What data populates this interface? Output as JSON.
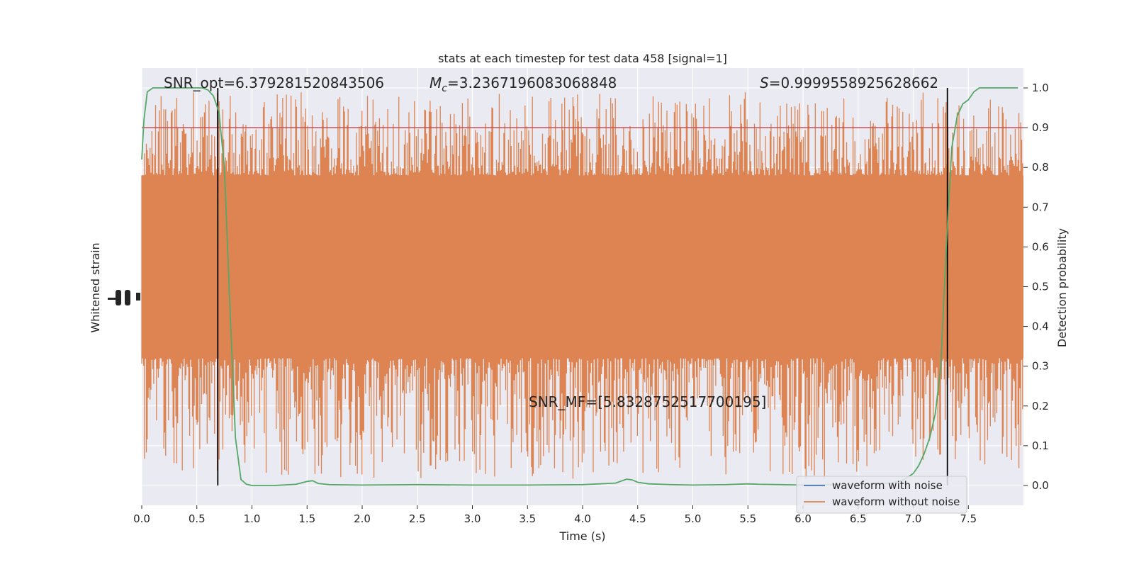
{
  "chart_data": {
    "type": "line",
    "title": "stats at each timestep for test data 458 [signal=1]",
    "xlabel": "Time (s)",
    "ylabel_left": "Whitened strain",
    "ylabel_right": "Detection probability",
    "xlim": [
      0.0,
      8.0
    ],
    "ylim_right": [
      -0.05,
      1.05
    ],
    "x_ticks": [
      0.0,
      0.5,
      1.0,
      1.5,
      2.0,
      2.5,
      3.0,
      3.5,
      4.0,
      4.5,
      5.0,
      5.5,
      6.0,
      6.5,
      7.0,
      7.5
    ],
    "x_tick_labels": [
      "0.0",
      "0.5",
      "1.0",
      "1.5",
      "2.0",
      "2.5",
      "3.0",
      "3.5",
      "4.0",
      "4.5",
      "5.0",
      "5.5",
      "6.0",
      "6.5",
      "7.0",
      "7.5"
    ],
    "y_right_ticks": [
      0.0,
      0.1,
      0.2,
      0.3,
      0.4,
      0.5,
      0.6,
      0.7,
      0.8,
      0.9,
      1.0
    ],
    "y_right_tick_labels": [
      "0.0",
      "0.1",
      "0.2",
      "0.3",
      "0.4",
      "0.5",
      "0.6",
      "0.7",
      "0.8",
      "0.9",
      "1.0"
    ],
    "grid": true,
    "legend_position": "lower-right",
    "series": [
      {
        "name": "waveform with noise",
        "color": "#4c72b0",
        "visible_in_plot": false
      },
      {
        "name": "waveform without noise",
        "color": "#dd8452",
        "style": "dense noise band",
        "band_core": [
          0.32,
          0.78
        ],
        "band_extremes": [
          0.0,
          1.0
        ]
      }
    ],
    "detection_probability": {
      "color": "#55a868",
      "x": [
        0.0,
        0.02,
        0.05,
        0.1,
        0.15,
        0.2,
        0.3,
        0.4,
        0.5,
        0.55,
        0.6,
        0.65,
        0.7,
        0.75,
        0.8,
        0.85,
        0.9,
        0.95,
        1.0,
        1.2,
        1.4,
        1.5,
        1.55,
        1.6,
        1.7,
        2.0,
        2.5,
        3.0,
        3.5,
        4.0,
        4.3,
        4.4,
        4.45,
        4.5,
        4.6,
        4.8,
        5.0,
        5.3,
        5.5,
        5.6,
        5.8,
        6.0,
        6.2,
        6.5,
        6.8,
        6.9,
        7.0,
        7.05,
        7.1,
        7.15,
        7.2,
        7.25,
        7.3,
        7.35,
        7.4,
        7.45,
        7.5,
        7.55,
        7.6,
        7.7,
        7.8,
        7.95
      ],
      "y": [
        0.82,
        0.92,
        0.99,
        1.0,
        1.0,
        1.0,
        1.0,
        1.0,
        1.0,
        1.0,
        0.995,
        0.98,
        0.94,
        0.8,
        0.45,
        0.12,
        0.015,
        0.003,
        0.0,
        0.0,
        0.003,
        0.01,
        0.012,
        0.005,
        0.002,
        0.001,
        0.002,
        0.001,
        0.001,
        0.002,
        0.006,
        0.016,
        0.014,
        0.008,
        0.004,
        0.002,
        0.001,
        0.002,
        0.004,
        0.003,
        0.002,
        0.001,
        0.002,
        0.003,
        0.006,
        0.012,
        0.03,
        0.05,
        0.08,
        0.12,
        0.18,
        0.3,
        0.6,
        0.85,
        0.93,
        0.96,
        0.97,
        0.99,
        1.0,
        1.0,
        1.0,
        1.0
      ]
    },
    "threshold": {
      "y": 0.9,
      "color": "#c44e52"
    },
    "vertical_markers": {
      "x": [
        0.69,
        7.31
      ],
      "color": "#000000"
    },
    "annotations": {
      "snr_opt": "SNR_opt=6.379281520843506",
      "mc_symbol": "M",
      "mc_sub": "c",
      "mc_value": "=3.2367196083068848",
      "s_symbol": "S",
      "s_value": "=0.9999558925628662",
      "snr_mf": "SNR_MF=[5.8328752517700195]"
    }
  }
}
